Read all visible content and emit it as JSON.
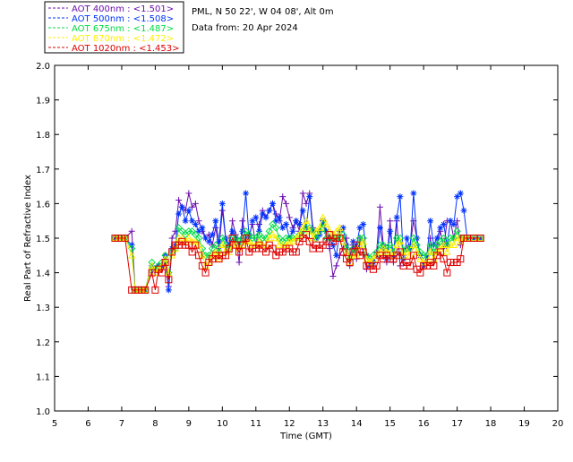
{
  "header": {
    "site_line": "PML, N 50 22', W 04 08', Alt 0m",
    "date_line": "Data from: 20 Apr 2024"
  },
  "chart_data": {
    "type": "line",
    "xlabel": "Time (GMT)",
    "ylabel": "Real Part of Refractive Index",
    "xlim": [
      5,
      20
    ],
    "ylim": [
      1.0,
      2.0
    ],
    "xticks": [
      "5",
      "6",
      "7",
      "8",
      "9",
      "10",
      "11",
      "12",
      "13",
      "14",
      "15",
      "16",
      "17",
      "18",
      "19",
      "20"
    ],
    "yticks": [
      "1.0",
      "1.1",
      "1.2",
      "1.3",
      "1.4",
      "1.5",
      "1.6",
      "1.7",
      "1.8",
      "1.9",
      "2.0"
    ],
    "grid": false,
    "legend_position": "top-left-outside",
    "x": [
      6.8,
      6.9,
      7.0,
      7.1,
      7.3,
      7.4,
      7.5,
      7.6,
      7.7,
      7.9,
      8.0,
      8.1,
      8.2,
      8.3,
      8.4,
      8.5,
      8.6,
      8.7,
      8.8,
      8.9,
      9.0,
      9.1,
      9.2,
      9.3,
      9.4,
      9.5,
      9.6,
      9.7,
      9.8,
      9.9,
      10.0,
      10.1,
      10.2,
      10.3,
      10.4,
      10.5,
      10.6,
      10.7,
      10.8,
      10.9,
      11.0,
      11.1,
      11.2,
      11.3,
      11.4,
      11.5,
      11.6,
      11.7,
      11.8,
      11.9,
      12.0,
      12.1,
      12.2,
      12.3,
      12.4,
      12.5,
      12.6,
      12.7,
      12.8,
      12.9,
      13.0,
      13.1,
      13.2,
      13.3,
      13.4,
      13.5,
      13.6,
      13.7,
      13.8,
      13.9,
      14.0,
      14.1,
      14.2,
      14.3,
      14.4,
      14.5,
      14.6,
      14.7,
      14.8,
      14.9,
      15.0,
      15.1,
      15.2,
      15.3,
      15.4,
      15.5,
      15.6,
      15.7,
      15.8,
      15.9,
      16.0,
      16.1,
      16.2,
      16.3,
      16.4,
      16.5,
      16.6,
      16.7,
      16.8,
      16.9,
      17.0,
      17.1,
      17.2,
      17.3,
      17.5,
      17.7
    ],
    "series": [
      {
        "name": "AOT  400nm : <1.501>",
        "color": "#6a0dad",
        "marker": "plus",
        "values": [
          1.5,
          1.5,
          1.5,
          1.5,
          1.52,
          1.35,
          1.35,
          1.35,
          1.35,
          1.4,
          1.41,
          1.42,
          1.41,
          1.43,
          1.36,
          1.5,
          1.52,
          1.61,
          1.59,
          1.58,
          1.63,
          1.59,
          1.6,
          1.55,
          1.52,
          1.5,
          1.51,
          1.48,
          1.53,
          1.47,
          1.58,
          1.5,
          1.46,
          1.55,
          1.51,
          1.43,
          1.55,
          1.5,
          1.51,
          1.54,
          1.48,
          1.54,
          1.58,
          1.56,
          1.58,
          1.6,
          1.57,
          1.55,
          1.62,
          1.6,
          1.56,
          1.53,
          1.55,
          1.52,
          1.63,
          1.6,
          1.63,
          1.53,
          1.5,
          1.52,
          1.55,
          1.5,
          1.47,
          1.39,
          1.42,
          1.45,
          1.47,
          1.5,
          1.42,
          1.48,
          1.44,
          1.5,
          1.46,
          1.41,
          1.43,
          1.42,
          1.46,
          1.59,
          1.48,
          1.43,
          1.55,
          1.43,
          1.55,
          1.42,
          1.45,
          1.47,
          1.48,
          1.55,
          1.5,
          1.45,
          1.42,
          1.43,
          1.5,
          1.43,
          1.48,
          1.52,
          1.47,
          1.55,
          1.55,
          1.5,
          1.55,
          1.48,
          1.5,
          1.5,
          1.5,
          1.5
        ]
      },
      {
        "name": "AOT  500nm : <1.508>",
        "color": "#0033ff",
        "marker": "asterisk",
        "values": [
          1.5,
          1.5,
          1.5,
          1.5,
          1.48,
          1.35,
          1.35,
          1.35,
          1.35,
          1.42,
          1.41,
          1.42,
          1.42,
          1.45,
          1.35,
          1.47,
          1.48,
          1.57,
          1.59,
          1.55,
          1.58,
          1.55,
          1.54,
          1.52,
          1.53,
          1.5,
          1.49,
          1.51,
          1.55,
          1.49,
          1.6,
          1.5,
          1.48,
          1.52,
          1.5,
          1.48,
          1.52,
          1.63,
          1.5,
          1.55,
          1.56,
          1.52,
          1.57,
          1.56,
          1.58,
          1.6,
          1.55,
          1.56,
          1.53,
          1.54,
          1.5,
          1.52,
          1.55,
          1.54,
          1.58,
          1.53,
          1.62,
          1.52,
          1.5,
          1.51,
          1.55,
          1.52,
          1.5,
          1.48,
          1.45,
          1.52,
          1.53,
          1.48,
          1.44,
          1.49,
          1.48,
          1.53,
          1.54,
          1.45,
          1.42,
          1.43,
          1.45,
          1.53,
          1.47,
          1.44,
          1.52,
          1.45,
          1.56,
          1.62,
          1.44,
          1.5,
          1.47,
          1.63,
          1.5,
          1.45,
          1.42,
          1.45,
          1.55,
          1.48,
          1.5,
          1.53,
          1.54,
          1.48,
          1.55,
          1.54,
          1.62,
          1.63,
          1.58,
          1.5,
          1.5,
          1.5
        ]
      },
      {
        "name": "AOT  675nm : <1.487>",
        "color": "#00dd44",
        "marker": "diamond",
        "values": [
          1.5,
          1.5,
          1.5,
          1.5,
          1.47,
          1.35,
          1.35,
          1.35,
          1.35,
          1.43,
          1.41,
          1.42,
          1.43,
          1.45,
          1.4,
          1.46,
          1.47,
          1.53,
          1.52,
          1.51,
          1.52,
          1.52,
          1.51,
          1.5,
          1.47,
          1.45,
          1.45,
          1.47,
          1.48,
          1.46,
          1.5,
          1.48,
          1.47,
          1.5,
          1.5,
          1.49,
          1.5,
          1.52,
          1.51,
          1.5,
          1.5,
          1.51,
          1.5,
          1.5,
          1.52,
          1.54,
          1.53,
          1.5,
          1.49,
          1.5,
          1.5,
          1.5,
          1.5,
          1.51,
          1.52,
          1.53,
          1.53,
          1.52,
          1.5,
          1.52,
          1.54,
          1.5,
          1.5,
          1.5,
          1.5,
          1.5,
          1.51,
          1.47,
          1.44,
          1.47,
          1.46,
          1.5,
          1.5,
          1.45,
          1.44,
          1.45,
          1.46,
          1.48,
          1.48,
          1.47,
          1.48,
          1.46,
          1.5,
          1.5,
          1.46,
          1.47,
          1.47,
          1.5,
          1.48,
          1.46,
          1.45,
          1.45,
          1.48,
          1.46,
          1.48,
          1.49,
          1.5,
          1.48,
          1.5,
          1.5,
          1.52,
          1.5,
          1.5,
          1.5,
          1.5,
          1.5
        ]
      },
      {
        "name": "AOT  870nm : <1.472>",
        "color": "#ffee00",
        "marker": "triangle",
        "values": [
          1.5,
          1.5,
          1.5,
          1.5,
          1.45,
          1.35,
          1.35,
          1.35,
          1.35,
          1.42,
          1.4,
          1.41,
          1.42,
          1.44,
          1.4,
          1.45,
          1.47,
          1.5,
          1.5,
          1.49,
          1.5,
          1.49,
          1.49,
          1.48,
          1.45,
          1.42,
          1.43,
          1.45,
          1.46,
          1.44,
          1.48,
          1.46,
          1.46,
          1.48,
          1.48,
          1.47,
          1.48,
          1.49,
          1.49,
          1.48,
          1.48,
          1.49,
          1.48,
          1.48,
          1.5,
          1.51,
          1.5,
          1.48,
          1.48,
          1.48,
          1.49,
          1.49,
          1.5,
          1.51,
          1.53,
          1.55,
          1.52,
          1.5,
          1.52,
          1.53,
          1.56,
          1.54,
          1.52,
          1.51,
          1.52,
          1.53,
          1.49,
          1.46,
          1.43,
          1.45,
          1.45,
          1.48,
          1.49,
          1.44,
          1.43,
          1.44,
          1.45,
          1.46,
          1.47,
          1.46,
          1.46,
          1.45,
          1.48,
          1.49,
          1.45,
          1.46,
          1.45,
          1.48,
          1.46,
          1.44,
          1.43,
          1.43,
          1.46,
          1.44,
          1.46,
          1.47,
          1.48,
          1.46,
          1.48,
          1.48,
          1.5,
          1.49,
          1.5,
          1.5,
          1.5,
          1.5
        ]
      },
      {
        "name": "AOT 1020nm : <1.453>",
        "color": "#dd0000",
        "marker": "square",
        "values": [
          1.5,
          1.5,
          1.5,
          1.5,
          1.35,
          1.35,
          1.35,
          1.35,
          1.35,
          1.4,
          1.35,
          1.41,
          1.4,
          1.43,
          1.38,
          1.46,
          1.48,
          1.48,
          1.49,
          1.48,
          1.48,
          1.46,
          1.48,
          1.45,
          1.42,
          1.4,
          1.43,
          1.44,
          1.45,
          1.44,
          1.45,
          1.45,
          1.47,
          1.5,
          1.48,
          1.46,
          1.48,
          1.5,
          1.46,
          1.47,
          1.47,
          1.48,
          1.47,
          1.46,
          1.48,
          1.47,
          1.45,
          1.46,
          1.46,
          1.47,
          1.47,
          1.46,
          1.46,
          1.49,
          1.5,
          1.51,
          1.49,
          1.47,
          1.48,
          1.47,
          1.48,
          1.49,
          1.51,
          1.49,
          1.5,
          1.5,
          1.46,
          1.44,
          1.43,
          1.46,
          1.48,
          1.45,
          1.46,
          1.42,
          1.42,
          1.41,
          1.42,
          1.45,
          1.44,
          1.45,
          1.44,
          1.44,
          1.45,
          1.46,
          1.42,
          1.43,
          1.42,
          1.45,
          1.41,
          1.4,
          1.42,
          1.42,
          1.43,
          1.42,
          1.45,
          1.46,
          1.44,
          1.4,
          1.43,
          1.43,
          1.43,
          1.44,
          1.5,
          1.5,
          1.5,
          1.5
        ]
      }
    ]
  }
}
